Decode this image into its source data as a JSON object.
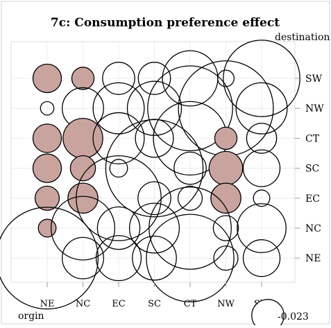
{
  "chart_data": {
    "type": "bubble-matrix",
    "title": "7c: Consumption preference effect",
    "x_axis_title": "orgin",
    "y_axis_title": "destination",
    "x_categories": [
      "NE",
      "NC",
      "EC",
      "SC",
      "CT",
      "NW",
      "SW"
    ],
    "y_categories": [
      "SW",
      "NW",
      "CT",
      "SC",
      "EC",
      "NC",
      "NE"
    ],
    "grid": true,
    "legend": {
      "value": "-0.023",
      "label": "-0.023",
      "placement": "bottom-right"
    },
    "fill_colors": {
      "positive": "#c9a49e",
      "negative": "#ffffff"
    },
    "cells": [
      {
        "x": "NE",
        "y": "SW",
        "value": 0.018,
        "sign": "positive"
      },
      {
        "x": "NC",
        "y": "SW",
        "value": 0.011,
        "sign": "positive"
      },
      {
        "x": "EC",
        "y": "SW",
        "value": -0.023,
        "sign": "negative"
      },
      {
        "x": "SC",
        "y": "SW",
        "value": -0.023,
        "sign": "negative"
      },
      {
        "x": "CT",
        "y": "SW",
        "value": -0.068,
        "sign": "negative"
      },
      {
        "x": "NW",
        "y": "SW",
        "value": -0.006,
        "sign": "negative"
      },
      {
        "x": "SW",
        "y": "SW",
        "value": -0.13,
        "sign": "negative"
      },
      {
        "x": "NE",
        "y": "NW",
        "value": -0.004,
        "sign": "negative"
      },
      {
        "x": "NC",
        "y": "NW",
        "value": -0.038,
        "sign": "negative"
      },
      {
        "x": "EC",
        "y": "NW",
        "value": -0.058,
        "sign": "negative"
      },
      {
        "x": "SC",
        "y": "NW",
        "value": -0.065,
        "sign": "negative"
      },
      {
        "x": "CT",
        "y": "NW",
        "value": -0.16,
        "sign": "negative"
      },
      {
        "x": "NW",
        "y": "NW",
        "value": -0.2,
        "sign": "negative"
      },
      {
        "x": "SW",
        "y": "NW",
        "value": -0.058,
        "sign": "negative"
      },
      {
        "x": "NE",
        "y": "CT",
        "value": 0.018,
        "sign": "positive"
      },
      {
        "x": "NC",
        "y": "CT",
        "value": 0.035,
        "sign": "positive"
      },
      {
        "x": "EC",
        "y": "CT",
        "value": -0.058,
        "sign": "negative"
      },
      {
        "x": "SC",
        "y": "CT",
        "value": -0.032,
        "sign": "negative"
      },
      {
        "x": "CT",
        "y": "CT",
        "value": -0.12,
        "sign": "negative"
      },
      {
        "x": "NW",
        "y": "CT",
        "value": 0.011,
        "sign": "positive"
      },
      {
        "x": "SW",
        "y": "CT",
        "value": -0.02,
        "sign": "negative"
      },
      {
        "x": "NE",
        "y": "SC",
        "value": 0.018,
        "sign": "positive"
      },
      {
        "x": "NC",
        "y": "SC",
        "value": 0.014,
        "sign": "positive"
      },
      {
        "x": "EC",
        "y": "SC",
        "value": -0.007,
        "sign": "negative"
      },
      {
        "x": "SC",
        "y": "SC",
        "value": -0.21,
        "sign": "negative"
      },
      {
        "x": "CT",
        "y": "SC",
        "value": -0.023,
        "sign": "negative"
      },
      {
        "x": "NW",
        "y": "SC",
        "value": 0.025,
        "sign": "positive"
      },
      {
        "x": "SW",
        "y": "SC",
        "value": -0.03,
        "sign": "negative"
      },
      {
        "x": "NE",
        "y": "EC",
        "value": 0.013,
        "sign": "positive"
      },
      {
        "x": "NC",
        "y": "EC",
        "value": 0.02,
        "sign": "positive"
      },
      {
        "x": "EC",
        "y": "EC",
        "value": -0.16,
        "sign": "negative"
      },
      {
        "x": "SC",
        "y": "EC",
        "value": -0.024,
        "sign": "negative"
      },
      {
        "x": "CT",
        "y": "EC",
        "value": -0.013,
        "sign": "negative"
      },
      {
        "x": "NW",
        "y": "EC",
        "value": 0.02,
        "sign": "positive"
      },
      {
        "x": "SW",
        "y": "EC",
        "value": -0.006,
        "sign": "negative"
      },
      {
        "x": "NE",
        "y": "NC",
        "value": 0.007,
        "sign": "positive"
      },
      {
        "x": "NC",
        "y": "NC",
        "value": -0.09,
        "sign": "negative"
      },
      {
        "x": "EC",
        "y": "NC",
        "value": -0.04,
        "sign": "negative"
      },
      {
        "x": "SC",
        "y": "NC",
        "value": -0.055,
        "sign": "negative"
      },
      {
        "x": "CT",
        "y": "NC",
        "value": -0.15,
        "sign": "negative"
      },
      {
        "x": "NW",
        "y": "NC",
        "value": -0.014,
        "sign": "negative"
      },
      {
        "x": "SW",
        "y": "NC",
        "value": -0.053,
        "sign": "negative"
      },
      {
        "x": "NE",
        "y": "NE",
        "value": -0.23,
        "sign": "negative"
      },
      {
        "x": "NC",
        "y": "NE",
        "value": -0.038,
        "sign": "negative"
      },
      {
        "x": "EC",
        "y": "NE",
        "value": -0.045,
        "sign": "negative"
      },
      {
        "x": "SC",
        "y": "NE",
        "value": -0.043,
        "sign": "negative"
      },
      {
        "x": "CT",
        "y": "NE",
        "value": -0.17,
        "sign": "negative"
      },
      {
        "x": "NW",
        "y": "NE",
        "value": -0.013,
        "sign": "negative"
      },
      {
        "x": "SW",
        "y": "NE",
        "value": -0.03,
        "sign": "negative"
      }
    ]
  }
}
